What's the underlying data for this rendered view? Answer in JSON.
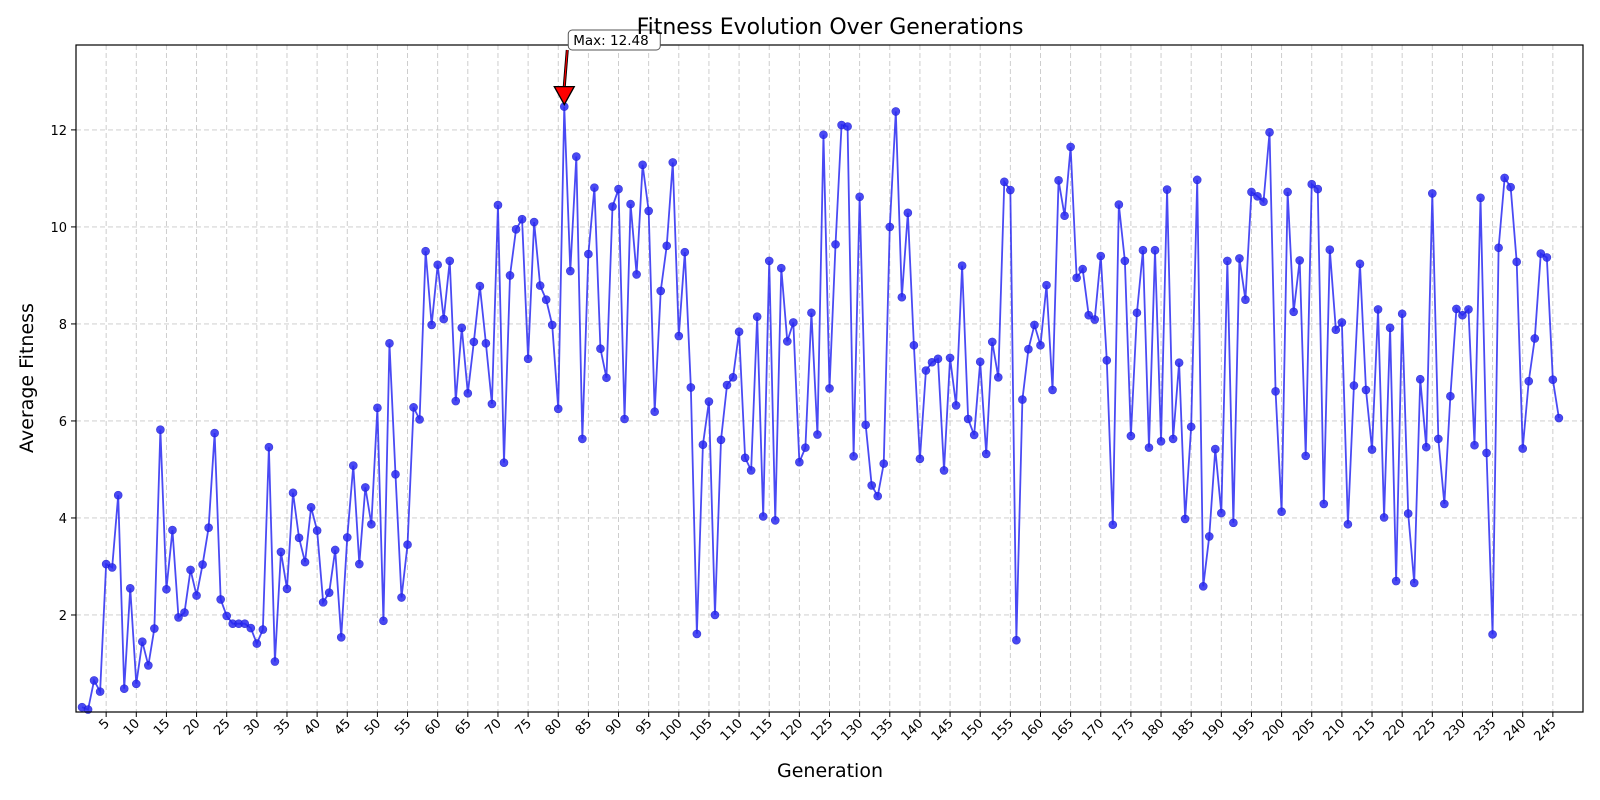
{
  "chart_data": {
    "type": "line",
    "title": "Fitness Evolution Over Generations",
    "xlabel": "Generation",
    "ylabel": "Average Fitness",
    "xlim": [
      0,
      250
    ],
    "ylim": [
      0,
      13.75
    ],
    "xticks": [
      5,
      10,
      15,
      20,
      25,
      30,
      35,
      40,
      45,
      50,
      55,
      60,
      65,
      70,
      75,
      80,
      85,
      90,
      95,
      100,
      105,
      110,
      115,
      120,
      125,
      130,
      135,
      140,
      145,
      150,
      155,
      160,
      165,
      170,
      175,
      180,
      185,
      190,
      195,
      200,
      205,
      210,
      215,
      220,
      225,
      230,
      235,
      240,
      245
    ],
    "yticks": [
      2,
      4,
      6,
      8,
      10,
      12
    ],
    "grid": true,
    "series": [
      {
        "color": "#2a2af2",
        "marker": "circle",
        "x_start": 1,
        "values": [
          0.1,
          0.05,
          0.65,
          0.42,
          3.05,
          2.98,
          4.47,
          0.48,
          2.55,
          0.58,
          1.45,
          0.96,
          1.72,
          5.82,
          2.53,
          3.75,
          1.95,
          2.05,
          2.93,
          2.4,
          3.04,
          3.8,
          5.75,
          2.32,
          1.98,
          1.82,
          1.82,
          1.82,
          1.73,
          1.41,
          1.7,
          5.46,
          1.04,
          3.3,
          2.54,
          4.52,
          3.59,
          3.09,
          4.22,
          3.74,
          2.26,
          2.46,
          3.34,
          1.54,
          3.6,
          5.08,
          3.05,
          4.63,
          3.87,
          6.27,
          1.88,
          7.6,
          4.9,
          2.36,
          3.45,
          6.28,
          6.03,
          9.5,
          7.98,
          9.22,
          8.1,
          9.3,
          6.41,
          7.92,
          6.57,
          7.63,
          8.78,
          7.6,
          6.35,
          10.45,
          5.14,
          9.0,
          9.95,
          10.16,
          7.28,
          10.1,
          8.79,
          8.5,
          7.98,
          6.25,
          12.48,
          9.09,
          11.45,
          5.63,
          9.44,
          10.81,
          7.49,
          6.89,
          10.42,
          10.78,
          6.04,
          10.47,
          9.02,
          11.28,
          10.33,
          6.19,
          8.68,
          9.61,
          11.33,
          7.75,
          9.48,
          6.69,
          1.61,
          5.51,
          6.4,
          2.0,
          5.61,
          6.74,
          6.9,
          7.84,
          5.24,
          4.98,
          8.15,
          4.03,
          9.3,
          3.95,
          9.15,
          7.64,
          8.03,
          5.15,
          5.45,
          8.23,
          5.72,
          11.9,
          6.67,
          9.64,
          12.1,
          12.07,
          5.27,
          10.62,
          5.92,
          4.67,
          4.45,
          5.12,
          10.0,
          12.38,
          8.55,
          10.29,
          7.56,
          5.22,
          7.04,
          7.21,
          7.28,
          4.98,
          7.3,
          6.32,
          9.2,
          6.04,
          5.71,
          7.22,
          5.32,
          7.63,
          6.9,
          10.93,
          10.76,
          1.48,
          6.44,
          7.48,
          7.98,
          7.56,
          8.8,
          6.64,
          10.96,
          10.23,
          11.65,
          8.95,
          9.13,
          8.18,
          8.09,
          9.4,
          7.25,
          3.86,
          10.46,
          9.3,
          5.69,
          8.23,
          9.52,
          5.45,
          9.52,
          5.58,
          10.77,
          5.63,
          7.2,
          3.98,
          5.88,
          10.97,
          2.59,
          3.62,
          5.42,
          4.1,
          9.3,
          3.9,
          9.35,
          8.5,
          10.72,
          10.63,
          10.52,
          11.95,
          6.61,
          4.13,
          10.72,
          8.25,
          9.31,
          5.28,
          10.88,
          10.78,
          4.29,
          9.53,
          7.88,
          8.03,
          3.87,
          6.73,
          9.24,
          6.64,
          5.41,
          8.3,
          4.01,
          7.92,
          2.7,
          8.21,
          4.09,
          2.66,
          6.86,
          5.46,
          10.69,
          5.63,
          4.29,
          6.51,
          8.31,
          8.18,
          8.3,
          5.5,
          10.6,
          5.34,
          1.6,
          9.57,
          11.01,
          10.82,
          9.28,
          5.43,
          6.82,
          7.7,
          9.45,
          9.37,
          6.85,
          6.06
        ]
      }
    ],
    "annotation": {
      "text": "Max: 12.48",
      "x": 81,
      "y": 12.48,
      "arrow_color": "#ff0000"
    }
  }
}
